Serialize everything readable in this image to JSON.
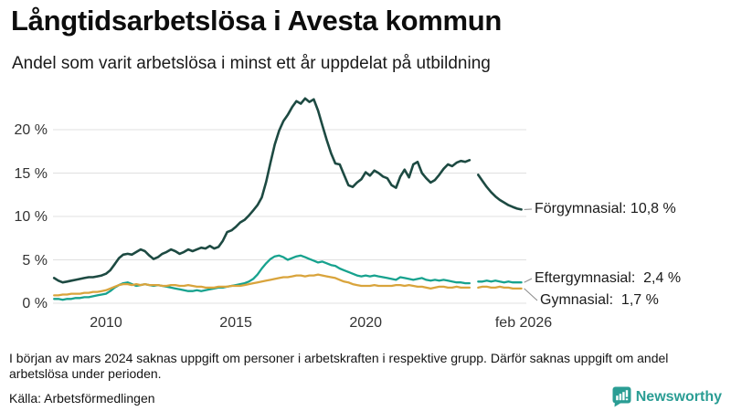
{
  "header": {
    "title": "Långtidsarbetslösa i Avesta kommun",
    "subtitle": "Andel som varit arbetslösa i minst ett år uppdelat på utbildning"
  },
  "footer": {
    "note": "I början av mars 2024 saknas uppgift om personer i arbetskraften i respektive grupp. Därför saknas uppgift om andel arbetslösa under perioden.",
    "source": "Källa: Arbetsförmedlingen",
    "brand": "Newsworthy"
  },
  "chart_data": {
    "type": "line",
    "title": "Långtidsarbetslösa i Avesta kommun",
    "subtitle": "Andel som varit arbetslösa i minst ett år uppdelat på utbildning",
    "unit": "%",
    "grid": true,
    "legend_position": "end-of-line-labels",
    "x_range": [
      2008.0,
      2026.17
    ],
    "y_axis": {
      "range": [
        0,
        24
      ],
      "ticks": [
        {
          "value": 0,
          "label": "0 %"
        },
        {
          "value": 5,
          "label": "5 %"
        },
        {
          "value": 10,
          "label": "10 %"
        },
        {
          "value": 15,
          "label": "15 %"
        },
        {
          "value": 20,
          "label": "20 %"
        }
      ]
    },
    "x_axis": {
      "ticks": [
        {
          "value": 2010,
          "label": "2010"
        },
        {
          "value": 2015,
          "label": "2015"
        },
        {
          "value": 2020,
          "label": "2020"
        },
        {
          "value": 2026.08,
          "label": "feb 2026"
        }
      ]
    },
    "style": {
      "grid_color": "#e0e0e0",
      "tick_color": "#333333",
      "connector_color": "#8a8a8a"
    },
    "gap_period": "mar 2024 – jun 2024 (data saknas)",
    "series": [
      {
        "name": "Förgymnasial",
        "color": "#1d4a42",
        "width": 2.6,
        "latest_value": "10,8 %",
        "end_label": "Förgymnasial: 10,8 %",
        "segments": [
          {
            "x_start": 2008.0,
            "x_step": 0.16667,
            "values": [
              2.9,
              2.6,
              2.4,
              2.5,
              2.6,
              2.7,
              2.8,
              2.9,
              3.0,
              3.0,
              3.1,
              3.2,
              3.4,
              3.8,
              4.5,
              5.2,
              5.6,
              5.7,
              5.6,
              5.9,
              6.2,
              6.0,
              5.5,
              5.1,
              5.3,
              5.7,
              5.9,
              6.2,
              6.0,
              5.7,
              5.9,
              6.2,
              6.0,
              6.2,
              6.4,
              6.3,
              6.6,
              6.3,
              6.5,
              7.2,
              8.2,
              8.4,
              8.8,
              9.3,
              9.6,
              10.1,
              10.7,
              11.3,
              12.2,
              14.0,
              16.2,
              18.3,
              19.9,
              21.0,
              21.7,
              22.6,
              23.3,
              23.0,
              23.6,
              23.2,
              23.5,
              22.2,
              20.5,
              18.8,
              17.3,
              16.1,
              16.0,
              14.8,
              13.6,
              13.4,
              13.9,
              14.3,
              15.1,
              14.7,
              15.3,
              15.0,
              14.6,
              14.4,
              13.6,
              13.3,
              14.6,
              15.4,
              14.5,
              16.0,
              16.3,
              15.0,
              14.4,
              13.9,
              14.2,
              14.8,
              15.5,
              16.0,
              15.8,
              16.2,
              16.4,
              16.3,
              16.5
            ]
          },
          {
            "x_start": 2024.33,
            "x_step": 0.16667,
            "values": [
              14.8,
              14.1,
              13.4,
              12.8,
              12.3,
              11.9,
              11.6,
              11.3,
              11.1,
              10.9,
              10.8
            ]
          }
        ]
      },
      {
        "name": "Eftergymnasial",
        "color": "#17a28e",
        "width": 2.3,
        "latest_value": "2,4 %",
        "end_label": "Eftergymnasial:  2,4 %",
        "segments": [
          {
            "x_start": 2008.0,
            "x_step": 0.16667,
            "values": [
              0.5,
              0.5,
              0.4,
              0.5,
              0.5,
              0.6,
              0.6,
              0.7,
              0.7,
              0.8,
              0.9,
              1.0,
              1.1,
              1.4,
              1.8,
              2.1,
              2.3,
              2.4,
              2.2,
              2.0,
              2.1,
              2.2,
              2.1,
              2.0,
              2.1,
              2.0,
              1.9,
              1.8,
              1.7,
              1.6,
              1.5,
              1.4,
              1.4,
              1.5,
              1.4,
              1.5,
              1.6,
              1.7,
              1.8,
              1.8,
              1.9,
              2.0,
              2.1,
              2.2,
              2.3,
              2.5,
              2.8,
              3.3,
              4.0,
              4.6,
              5.1,
              5.4,
              5.5,
              5.3,
              5.0,
              5.2,
              5.4,
              5.5,
              5.3,
              5.1,
              4.9,
              4.7,
              4.8,
              4.6,
              4.4,
              4.3,
              4.0,
              3.8,
              3.6,
              3.4,
              3.2,
              3.1,
              3.2,
              3.1,
              3.2,
              3.1,
              3.0,
              2.9,
              2.8,
              2.7,
              3.0,
              2.9,
              2.8,
              2.7,
              2.8,
              2.9,
              2.7,
              2.6,
              2.7,
              2.6,
              2.7,
              2.6,
              2.5,
              2.4,
              2.4,
              2.3,
              2.3
            ]
          },
          {
            "x_start": 2024.33,
            "x_step": 0.16667,
            "values": [
              2.5,
              2.5,
              2.6,
              2.5,
              2.6,
              2.5,
              2.4,
              2.5,
              2.4,
              2.4,
              2.4
            ]
          }
        ]
      },
      {
        "name": "Gymnasial",
        "color": "#d9a43c",
        "width": 2.3,
        "latest_value": "1,7 %",
        "end_label": "Gymnasial:  1,7 %",
        "segments": [
          {
            "x_start": 2008.0,
            "x_step": 0.16667,
            "values": [
              0.9,
              0.9,
              1.0,
              1.0,
              1.1,
              1.1,
              1.1,
              1.2,
              1.2,
              1.3,
              1.3,
              1.4,
              1.5,
              1.7,
              1.9,
              2.1,
              2.2,
              2.2,
              2.1,
              2.2,
              2.1,
              2.2,
              2.1,
              2.1,
              2.1,
              2.0,
              2.0,
              2.1,
              2.1,
              2.0,
              2.0,
              2.1,
              2.0,
              1.9,
              1.9,
              1.8,
              1.8,
              1.8,
              1.9,
              1.9,
              1.9,
              2.0,
              2.0,
              2.0,
              2.1,
              2.2,
              2.3,
              2.4,
              2.5,
              2.6,
              2.7,
              2.8,
              2.9,
              3.0,
              3.0,
              3.1,
              3.2,
              3.2,
              3.1,
              3.2,
              3.2,
              3.3,
              3.2,
              3.1,
              3.0,
              2.9,
              2.7,
              2.5,
              2.4,
              2.2,
              2.1,
              2.0,
              2.0,
              2.0,
              2.1,
              2.0,
              2.0,
              2.0,
              2.0,
              2.1,
              2.1,
              2.0,
              2.1,
              2.0,
              1.9,
              1.9,
              1.8,
              1.7,
              1.8,
              1.9,
              1.9,
              1.8,
              1.8,
              1.9,
              1.8,
              1.8,
              1.8
            ]
          },
          {
            "x_start": 2024.33,
            "x_step": 0.16667,
            "values": [
              1.8,
              1.9,
              1.9,
              1.8,
              1.8,
              1.9,
              1.8,
              1.8,
              1.7,
              1.7,
              1.7
            ]
          }
        ]
      }
    ]
  }
}
